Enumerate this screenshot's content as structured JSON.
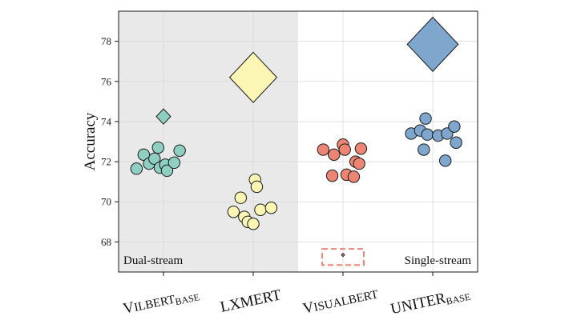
{
  "chart_data": {
    "type": "scatter",
    "title": "",
    "xlabel": "",
    "ylabel": "Accuracy",
    "ylim": [
      66.5,
      79.5
    ],
    "yticks": [
      68,
      70,
      72,
      74,
      76,
      78
    ],
    "grid": true,
    "legend": "none",
    "categories": [
      {
        "main": "V",
        "rest": "ILBERT",
        "sub": "BASE"
      },
      {
        "main": "LXMERT",
        "rest": "",
        "sub": ""
      },
      {
        "main": "V",
        "rest": "ISUALBERT",
        "sub": ""
      },
      {
        "main": "UNITER",
        "rest": "",
        "sub": "BASE"
      }
    ],
    "regions": [
      {
        "label": "Dual-stream",
        "from": 0,
        "to": 1,
        "shaded": true,
        "color": "#e9e9e9"
      },
      {
        "label": "Single-stream",
        "from": 2,
        "to": 3,
        "shaded": false
      }
    ],
    "series": [
      {
        "category": 0,
        "color": "#8fcfc1",
        "points": [
          [
            -0.3,
            71.65
          ],
          [
            -0.22,
            72.35
          ],
          [
            -0.16,
            71.9
          ],
          [
            -0.1,
            72.15
          ],
          [
            -0.06,
            72.7
          ],
          [
            -0.04,
            71.7
          ],
          [
            0.02,
            71.85
          ],
          [
            0.04,
            71.55
          ],
          [
            0.12,
            71.95
          ],
          [
            0.18,
            72.55
          ]
        ],
        "diamond": {
          "value": 74.25,
          "half_height": 0.38
        }
      },
      {
        "category": 1,
        "color": "#fbf6b4",
        "points": [
          [
            -0.22,
            69.5
          ],
          [
            -0.14,
            70.2
          ],
          [
            -0.1,
            69.25
          ],
          [
            -0.06,
            69.0
          ],
          [
            0.0,
            68.9
          ],
          [
            0.02,
            71.1
          ],
          [
            0.04,
            70.75
          ],
          [
            0.08,
            69.6
          ],
          [
            0.2,
            69.7
          ]
        ],
        "diamond": {
          "value": 76.2,
          "half_height": 1.25
        }
      },
      {
        "category": 2,
        "color": "#ec8573",
        "points": [
          [
            -0.22,
            72.6
          ],
          [
            -0.12,
            71.3
          ],
          [
            -0.1,
            72.35
          ],
          [
            0.0,
            72.85
          ],
          [
            0.02,
            72.6
          ],
          [
            0.04,
            71.35
          ],
          [
            0.12,
            71.25
          ],
          [
            0.14,
            72.0
          ],
          [
            0.18,
            71.9
          ],
          [
            0.2,
            72.65
          ]
        ],
        "diamond": {
          "value": 67.35,
          "half_height": 0.08
        },
        "highlight_box": {
          "y_from": 66.85,
          "y_to": 67.65,
          "color": "#ec8573"
        }
      },
      {
        "category": 3,
        "color": "#7fa6cd",
        "points": [
          [
            -0.24,
            73.4
          ],
          [
            -0.14,
            73.55
          ],
          [
            -0.1,
            72.6
          ],
          [
            -0.08,
            74.15
          ],
          [
            -0.06,
            73.35
          ],
          [
            0.06,
            73.3
          ],
          [
            0.14,
            72.05
          ],
          [
            0.16,
            73.4
          ],
          [
            0.24,
            73.75
          ],
          [
            0.26,
            72.95
          ]
        ],
        "diamond": {
          "value": 77.85,
          "half_height": 1.35
        }
      }
    ]
  }
}
